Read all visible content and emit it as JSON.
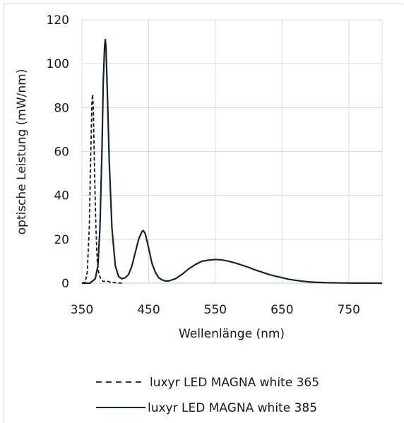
{
  "chart_data": {
    "type": "line",
    "title": "",
    "xlabel": "Wellenlänge (nm)",
    "ylabel": "optische Leistung (mW/nm)",
    "xlim": [
      350,
      800
    ],
    "ylim": [
      0,
      120
    ],
    "x_ticks": [
      350,
      450,
      550,
      650,
      750
    ],
    "y_ticks": [
      0,
      20,
      40,
      60,
      80,
      100,
      120
    ],
    "grid": true,
    "legend_position": "bottom",
    "series": [
      {
        "name": "luxyr LED MAGNA white 365",
        "line_style": "dashed",
        "color": "#1a1a1a",
        "points": [
          [
            350,
            0
          ],
          [
            355,
            0.5
          ],
          [
            358,
            5
          ],
          [
            361,
            25
          ],
          [
            363,
            55
          ],
          [
            365,
            83
          ],
          [
            366,
            86
          ],
          [
            367,
            80
          ],
          [
            369,
            50
          ],
          [
            371,
            25
          ],
          [
            373,
            10
          ],
          [
            375,
            5
          ],
          [
            378,
            2
          ],
          [
            382,
            0.8
          ],
          [
            388,
            1
          ],
          [
            392,
            0.5
          ],
          [
            400,
            0.2
          ],
          [
            410,
            0
          ]
        ]
      },
      {
        "name": "luxyr LED MAGNA white 385",
        "line_style": "solid",
        "color": "#0f2535",
        "points": [
          [
            350,
            0
          ],
          [
            362,
            0
          ],
          [
            370,
            2
          ],
          [
            374,
            8
          ],
          [
            377,
            25
          ],
          [
            380,
            60
          ],
          [
            382,
            92
          ],
          [
            384,
            108
          ],
          [
            385,
            111
          ],
          [
            386,
            108
          ],
          [
            388,
            88
          ],
          [
            391,
            55
          ],
          [
            395,
            25
          ],
          [
            400,
            8
          ],
          [
            405,
            3
          ],
          [
            410,
            2
          ],
          [
            415,
            2.5
          ],
          [
            420,
            4
          ],
          [
            425,
            8
          ],
          [
            430,
            14
          ],
          [
            435,
            20
          ],
          [
            440,
            23.5
          ],
          [
            442,
            24
          ],
          [
            445,
            22.5
          ],
          [
            450,
            16
          ],
          [
            455,
            9
          ],
          [
            460,
            5
          ],
          [
            465,
            2.5
          ],
          [
            470,
            1.5
          ],
          [
            475,
            1
          ],
          [
            480,
            1
          ],
          [
            490,
            2
          ],
          [
            500,
            4
          ],
          [
            510,
            6.5
          ],
          [
            520,
            8.5
          ],
          [
            530,
            10
          ],
          [
            540,
            10.5
          ],
          [
            550,
            10.8
          ],
          [
            560,
            10.6
          ],
          [
            570,
            10
          ],
          [
            580,
            9.2
          ],
          [
            590,
            8.2
          ],
          [
            600,
            7.2
          ],
          [
            610,
            6
          ],
          [
            620,
            5
          ],
          [
            630,
            4
          ],
          [
            640,
            3.2
          ],
          [
            650,
            2.5
          ],
          [
            660,
            1.8
          ],
          [
            670,
            1.3
          ],
          [
            680,
            0.9
          ],
          [
            690,
            0.6
          ],
          [
            700,
            0.4
          ],
          [
            720,
            0.2
          ],
          [
            740,
            0.1
          ],
          [
            760,
            0.05
          ],
          [
            800,
            0
          ]
        ]
      }
    ]
  }
}
